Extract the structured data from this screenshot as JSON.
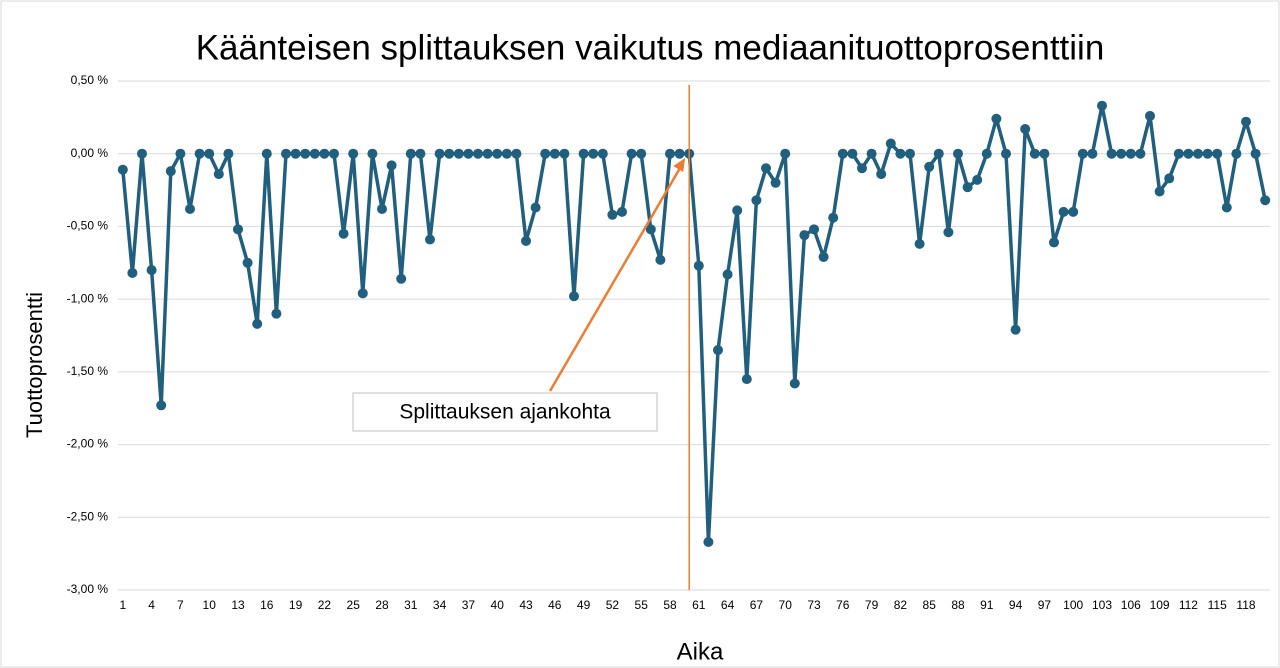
{
  "chart_data": {
    "type": "line",
    "title": "Käänteisen splittauksen vaikutus mediaanituottoprosenttiin",
    "x_label": "Aika",
    "y_label": "Tuottoprosentti",
    "x": [
      1,
      2,
      3,
      4,
      5,
      6,
      7,
      8,
      9,
      10,
      11,
      12,
      13,
      14,
      15,
      16,
      17,
      18,
      19,
      20,
      21,
      22,
      23,
      24,
      25,
      26,
      27,
      28,
      29,
      30,
      31,
      32,
      33,
      34,
      35,
      36,
      37,
      38,
      39,
      40,
      41,
      42,
      43,
      44,
      45,
      46,
      47,
      48,
      49,
      50,
      51,
      52,
      53,
      54,
      55,
      56,
      57,
      58,
      59,
      60,
      61,
      62,
      63,
      64,
      65,
      66,
      67,
      68,
      69,
      70,
      71,
      72,
      73,
      74,
      75,
      76,
      77,
      78,
      79,
      80,
      81,
      82,
      83,
      84,
      85,
      86,
      87,
      88,
      89,
      90,
      91,
      92,
      93,
      94,
      95,
      96,
      97,
      98,
      99,
      100,
      101,
      102,
      103,
      104,
      105,
      106,
      107,
      108,
      109,
      110,
      111,
      112,
      113,
      114,
      115,
      116,
      117,
      118,
      119,
      120
    ],
    "series": [
      {
        "color": "#215f7e",
        "values": [
          -0.11,
          -0.82,
          0,
          -0.8,
          -1.73,
          -0.12,
          0,
          -0.38,
          0,
          0,
          -0.14,
          0,
          -0.52,
          -0.75,
          -1.17,
          0,
          -1.1,
          0,
          0,
          0,
          0,
          0,
          0,
          -0.55,
          0,
          -0.96,
          0,
          -0.38,
          -0.08,
          -0.86,
          0,
          0,
          -0.59,
          0,
          0,
          0,
          0,
          0,
          0,
          0,
          0,
          0,
          -0.6,
          -0.37,
          0,
          0,
          0,
          -0.98,
          0,
          0,
          0,
          -0.42,
          -0.4,
          0,
          0,
          -0.52,
          -0.73,
          0,
          0,
          0,
          -0.77,
          -2.67,
          -1.35,
          -0.83,
          -0.39,
          -1.55,
          -0.32,
          -0.1,
          -0.2,
          0,
          -1.58,
          -0.56,
          -0.52,
          -0.71,
          -0.44,
          0,
          0,
          -0.1,
          0,
          -0.14,
          0.07,
          0,
          0,
          -0.62,
          -0.09,
          0,
          -0.54,
          0,
          -0.23,
          -0.18,
          0,
          0.24,
          0,
          -1.21,
          0.17,
          0,
          0,
          -0.61,
          -0.4,
          -0.4,
          0,
          0,
          0.33,
          0,
          0,
          0,
          0,
          0.26,
          -0.26,
          -0.17,
          0,
          0,
          0,
          0,
          0,
          -0.37,
          0,
          0.22,
          0,
          -0.32
        ]
      }
    ],
    "xlim": [
      0.5,
      120.5
    ],
    "xticks": [
      1,
      4,
      7,
      10,
      13,
      16,
      19,
      22,
      25,
      28,
      31,
      34,
      37,
      40,
      43,
      46,
      49,
      52,
      55,
      58,
      61,
      64,
      67,
      70,
      73,
      76,
      79,
      82,
      85,
      88,
      91,
      94,
      97,
      100,
      103,
      106,
      109,
      112,
      115,
      118
    ],
    "ylim": [
      -3,
      0.5
    ],
    "yticks": [
      {
        "value": 0.5,
        "label": "0,50 %"
      },
      {
        "value": 0,
        "label": "0,00 %"
      },
      {
        "value": -0.5,
        "label": "-0,50 %"
      },
      {
        "value": -1,
        "label": "-1,00 %"
      },
      {
        "value": -1.5,
        "label": "-1,50 %"
      },
      {
        "value": -2,
        "label": "-2,00 %"
      },
      {
        "value": -2.5,
        "label": "-2,50 %"
      },
      {
        "value": -3,
        "label": "-3,00 %"
      }
    ],
    "grid": true,
    "annotations": [
      {
        "text": "Splittauksen ajankohta",
        "x": 60,
        "color": "#ed7d31"
      }
    ]
  }
}
